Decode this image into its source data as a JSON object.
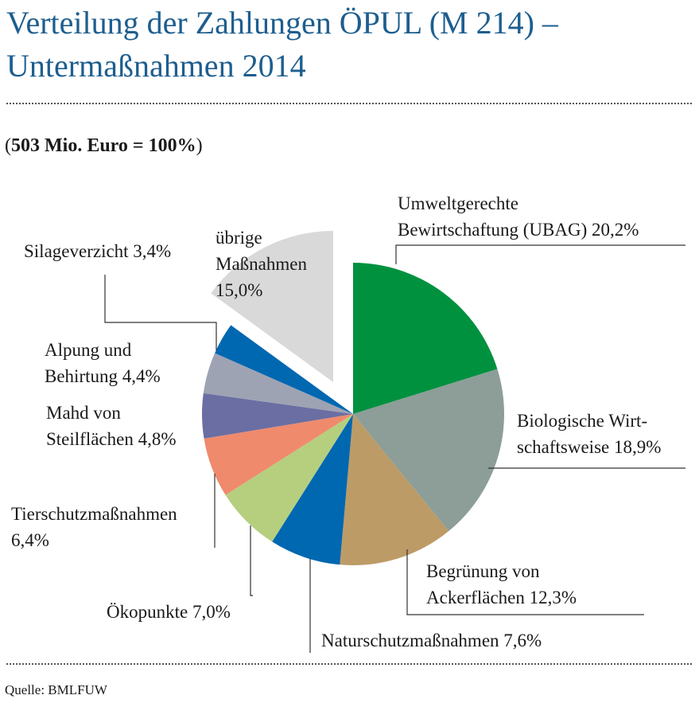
{
  "header": {
    "title_line1": "Verteilung der Zahlungen ÖPUL (M 214) –",
    "title_line2": "Untermaßnahmen 2014"
  },
  "subtitle": {
    "open": "(",
    "bold": "503 Mio. Euro = 100%",
    "close": ")"
  },
  "footer": {
    "source": "Quelle: BMLFUW"
  },
  "chart_data": {
    "type": "pie",
    "unit": "%",
    "total_label": "503 Mio. Euro = 100%",
    "slices": [
      {
        "label_lines": [
          "Umweltgerechte",
          "Bewirtschaftung (UBAG) 20,2%"
        ],
        "value": 20.2,
        "color": "#00913f"
      },
      {
        "label_lines": [
          "Biologische Wirt-",
          "schaftsweise 18,9%"
        ],
        "value": 18.9,
        "color": "#8c9e97"
      },
      {
        "label_lines": [
          "Begrünung von",
          "Ackerflächen 12,3%"
        ],
        "value": 12.3,
        "color": "#bd9b66"
      },
      {
        "label_lines": [
          "Naturschutzmaßnahmen 7,6%"
        ],
        "value": 7.6,
        "color": "#0067b1"
      },
      {
        "label_lines": [
          "Ökopunkte 7,0%"
        ],
        "value": 7.0,
        "color": "#b5cf7f"
      },
      {
        "label_lines": [
          "Tierschutzmaßnahmen",
          "6,4%"
        ],
        "value": 6.4,
        "color": "#ef8a6c"
      },
      {
        "label_lines": [
          "Mahd von",
          "Steilflächen 4,8%"
        ],
        "value": 4.8,
        "color": "#6a6ea3"
      },
      {
        "label_lines": [
          "Alpung und",
          "Behirtung 4,4%"
        ],
        "value": 4.4,
        "color": "#9ea3b4"
      },
      {
        "label_lines": [
          "Silageverzicht 3,4%"
        ],
        "value": 3.4,
        "color": "#0067b1"
      },
      {
        "label_lines": [
          "übrige",
          "Maßnahmen",
          "15,0%"
        ],
        "value": 15.0,
        "color": "#d9d9d9",
        "exploded": true
      }
    ]
  }
}
